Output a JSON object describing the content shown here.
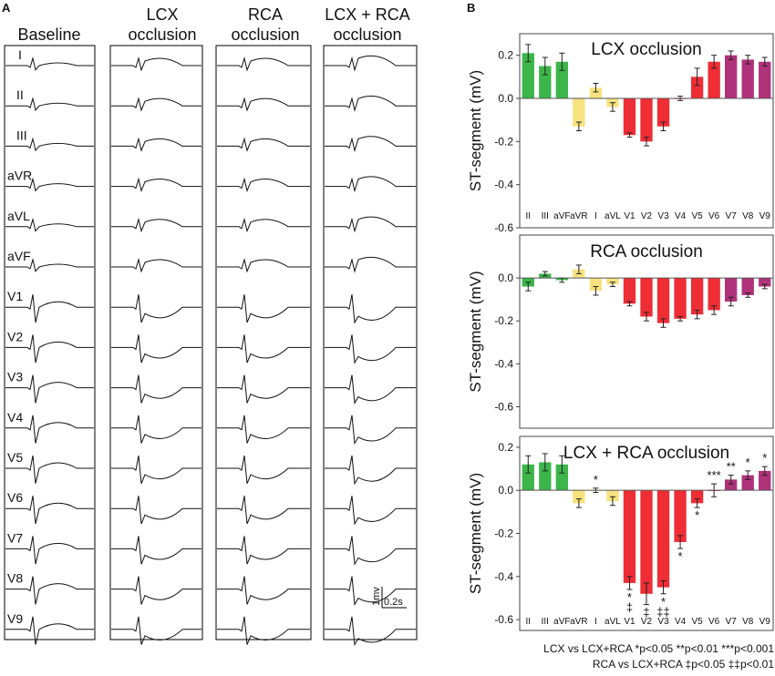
{
  "panel_a": {
    "label": "A",
    "columns": [
      {
        "title_lines": [
          "Baseline"
        ]
      },
      {
        "title_lines": [
          "LCX",
          "occlusion"
        ]
      },
      {
        "title_lines": [
          "RCA",
          "occlusion"
        ]
      },
      {
        "title_lines": [
          "LCX + RCA",
          "occlusion"
        ]
      }
    ],
    "leads": [
      "I",
      "II",
      "III",
      "aVR",
      "aVL",
      "aVF",
      "V1",
      "V2",
      "V3",
      "V4",
      "V5",
      "V6",
      "V7",
      "V8",
      "V9"
    ],
    "scale_bar": {
      "voltage_label": "1mv",
      "time_label": "0.2s"
    }
  },
  "panel_b": {
    "label": "B",
    "footnote_lines": [
      "LCX vs LCX+RCA *p<0.05 **p<0.01 ***p<0.001",
      "RCA vs LCX+RCA ‡p<0.05 ‡‡p<0.01"
    ]
  },
  "colors": {
    "green": "#3cb54a",
    "yellow": "#f7e27e",
    "red": "#ee2d35",
    "magenta": "#b0327a"
  },
  "chart_data": [
    {
      "type": "bar",
      "title": "LCX occlusion",
      "ylabel": "ST-segment (mV)",
      "ylim": [
        -0.6,
        0.3
      ],
      "yticks": [
        "0.2",
        "0.0",
        "-0.2",
        "-0.4",
        "-0.6"
      ],
      "ytick_values": [
        0.2,
        0.0,
        -0.2,
        -0.4,
        -0.6
      ],
      "categories": [
        "II",
        "III",
        "aVF",
        "aVR",
        "I",
        "aVL",
        "V1",
        "V2",
        "V3",
        "V4",
        "V5",
        "V6",
        "V7",
        "V8",
        "V9"
      ],
      "values": [
        0.21,
        0.15,
        0.17,
        -0.13,
        0.05,
        -0.04,
        -0.17,
        -0.2,
        -0.13,
        0.0,
        0.1,
        0.17,
        0.2,
        0.18,
        0.17
      ],
      "errors": [
        0.04,
        0.04,
        0.04,
        0.02,
        0.02,
        0.02,
        0.01,
        0.02,
        0.02,
        0.01,
        0.04,
        0.03,
        0.02,
        0.02,
        0.02
      ],
      "color_groups": [
        "green",
        "green",
        "green",
        "yellow",
        "yellow",
        "yellow",
        "red",
        "red",
        "red",
        "red",
        "red",
        "red",
        "magenta",
        "magenta",
        "magenta"
      ],
      "sig_above": [
        "",
        "",
        "",
        "",
        "",
        "",
        "",
        "",
        "",
        "",
        "",
        "",
        "",
        "",
        ""
      ],
      "sig_below": [
        "",
        "",
        "",
        "",
        "",
        "",
        "",
        "",
        "",
        "",
        "",
        "",
        "",
        "",
        ""
      ]
    },
    {
      "type": "bar",
      "title": "RCA occlusion",
      "ylabel": "ST-segment (mV)",
      "ylim": [
        -0.7,
        0.2
      ],
      "yticks": [
        "0.0",
        "-0.2",
        "-0.4",
        "-0.6"
      ],
      "ytick_values": [
        0.0,
        -0.2,
        -0.4,
        -0.6
      ],
      "categories": [
        "II",
        "III",
        "aVF",
        "aVR",
        "I",
        "aVL",
        "V1",
        "V2",
        "V3",
        "V4",
        "V5",
        "V6",
        "V7",
        "V8",
        "V9"
      ],
      "values": [
        -0.04,
        0.02,
        -0.01,
        0.04,
        -0.06,
        -0.03,
        -0.12,
        -0.18,
        -0.21,
        -0.19,
        -0.17,
        -0.15,
        -0.11,
        -0.08,
        -0.04
      ],
      "errors": [
        0.02,
        0.01,
        0.01,
        0.02,
        0.02,
        0.01,
        0.01,
        0.02,
        0.02,
        0.01,
        0.02,
        0.02,
        0.02,
        0.01,
        0.01
      ],
      "color_groups": [
        "green",
        "green",
        "green",
        "yellow",
        "yellow",
        "yellow",
        "red",
        "red",
        "red",
        "red",
        "red",
        "red",
        "magenta",
        "magenta",
        "magenta"
      ],
      "sig_above": [
        "",
        "",
        "",
        "",
        "",
        "",
        "",
        "",
        "",
        "",
        "",
        "",
        "",
        "",
        ""
      ],
      "sig_below": [
        "",
        "",
        "",
        "",
        "",
        "",
        "",
        "",
        "",
        "",
        "",
        "",
        "",
        "",
        ""
      ]
    },
    {
      "type": "bar",
      "title": "LCX + RCA occlusion",
      "ylabel": "ST-segment (mV)",
      "ylim": [
        -0.65,
        0.25
      ],
      "yticks": [
        "0.2",
        "0.0",
        "-0.2",
        "-0.4",
        "-0.6"
      ],
      "ytick_values": [
        0.2,
        0.0,
        -0.2,
        -0.4,
        -0.6
      ],
      "categories": [
        "II",
        "III",
        "aVF",
        "aVR",
        "I",
        "aVL",
        "V1",
        "V2",
        "V3",
        "V4",
        "V5",
        "V6",
        "V7",
        "V8",
        "V9"
      ],
      "values": [
        0.12,
        0.13,
        0.12,
        -0.06,
        0.0,
        -0.05,
        -0.43,
        -0.48,
        -0.45,
        -0.24,
        -0.06,
        0.0,
        0.05,
        0.07,
        0.09
      ],
      "errors": [
        0.04,
        0.04,
        0.04,
        0.02,
        0.01,
        0.02,
        0.03,
        0.05,
        0.03,
        0.03,
        0.02,
        0.03,
        0.02,
        0.02,
        0.02
      ],
      "color_groups": [
        "green",
        "green",
        "green",
        "yellow",
        "yellow",
        "yellow",
        "red",
        "red",
        "red",
        "red",
        "red",
        "red",
        "magenta",
        "magenta",
        "magenta"
      ],
      "sig_above": [
        "",
        "",
        "",
        "",
        "*",
        "",
        "",
        "",
        "",
        "",
        "",
        "***",
        "**",
        "*",
        "*"
      ],
      "sig_below": [
        "",
        "",
        "",
        "",
        "",
        "",
        "*\n‡",
        "‡",
        "*\n‡‡",
        "*",
        "*",
        "",
        "",
        "",
        ""
      ]
    }
  ]
}
